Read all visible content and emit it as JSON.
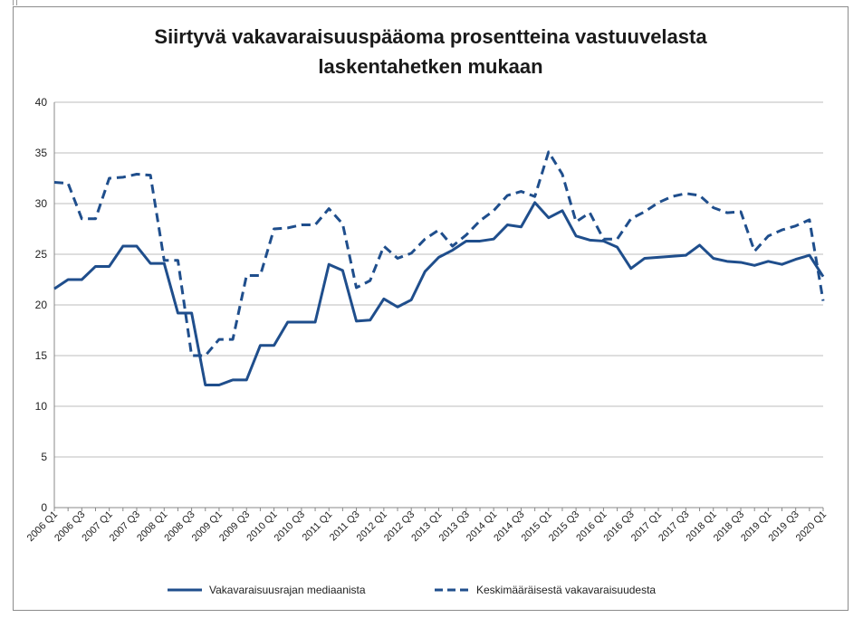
{
  "chart_data": {
    "type": "line",
    "title_lines": [
      "Siirtyvä vakavaraisuuspääoma prosentteina vastuuvelasta",
      "laskentahetken mukaan"
    ],
    "xlabel": "",
    "ylabel": "",
    "ylim": [
      0,
      40
    ],
    "yticks": [
      "0",
      "5",
      "10",
      "15",
      "20",
      "25",
      "30",
      "35",
      "40"
    ],
    "grid": true,
    "legend_position": "bottom",
    "x_labels": [
      "2006 Q1",
      "2006 Q3",
      "2007 Q1",
      "2007 Q3",
      "2008 Q1",
      "2008 Q3",
      "2009 Q1",
      "2009 Q3",
      "2010 Q1",
      "2010 Q3",
      "2011 Q1",
      "2011 Q3",
      "2012 Q1",
      "2012 Q3",
      "2013 Q1",
      "2013 Q3",
      "2014 Q1",
      "2014 Q3",
      "2015 Q1",
      "2015 Q3",
      "2016 Q1",
      "2016 Q3",
      "2017 Q1",
      "2017 Q3",
      "2018 Q1",
      "2018 Q3",
      "2019 Q1",
      "2019 Q3",
      "2020 Q1"
    ],
    "x_quarters": [
      "2006 Q1",
      "2006 Q2",
      "2006 Q3",
      "2006 Q4",
      "2007 Q1",
      "2007 Q2",
      "2007 Q3",
      "2007 Q4",
      "2008 Q1",
      "2008 Q2",
      "2008 Q3",
      "2008 Q4",
      "2009 Q1",
      "2009 Q2",
      "2009 Q3",
      "2009 Q4",
      "2010 Q1",
      "2010 Q2",
      "2010 Q3",
      "2010 Q4",
      "2011 Q1",
      "2011 Q2",
      "2011 Q3",
      "2011 Q4",
      "2012 Q1",
      "2012 Q2",
      "2012 Q3",
      "2012 Q4",
      "2013 Q1",
      "2013 Q2",
      "2013 Q3",
      "2013 Q4",
      "2014 Q1",
      "2014 Q2",
      "2014 Q3",
      "2014 Q4",
      "2015 Q1",
      "2015 Q2",
      "2015 Q3",
      "2015 Q4",
      "2016 Q1",
      "2016 Q2",
      "2016 Q3",
      "2016 Q4",
      "2017 Q1",
      "2017 Q2",
      "2017 Q3",
      "2017 Q4",
      "2018 Q1",
      "2018 Q2",
      "2018 Q3",
      "2018 Q4",
      "2019 Q1",
      "2019 Q2",
      "2019 Q3",
      "2019 Q4",
      "2020 Q1"
    ],
    "series": [
      {
        "name": "Vakavaraisuusrajan mediaanista",
        "style": "solid",
        "color": "#1f4e8c",
        "values": [
          21.6,
          22.5,
          22.5,
          23.8,
          23.8,
          25.8,
          25.8,
          24.1,
          24.1,
          19.2,
          19.2,
          12.1,
          12.1,
          12.6,
          12.6,
          16.0,
          16.0,
          18.3,
          18.3,
          18.3,
          24.0,
          23.4,
          18.4,
          18.5,
          20.6,
          19.8,
          20.5,
          23.3,
          24.7,
          25.4,
          26.3,
          26.3,
          26.5,
          27.9,
          27.7,
          30.1,
          28.6,
          29.3,
          26.8,
          26.4,
          26.3,
          25.7,
          23.6,
          24.6,
          24.7,
          24.8,
          24.9,
          25.9,
          24.6,
          24.3,
          24.2,
          23.9,
          24.3,
          24.0,
          24.5,
          24.9,
          22.8
        ]
      },
      {
        "name": "Keskimääräisestä vakavaraisuudesta",
        "style": "dashed",
        "color": "#1f4e8c",
        "values": [
          32.1,
          32.0,
          28.5,
          28.5,
          32.5,
          32.6,
          32.9,
          32.8,
          24.4,
          24.4,
          15.0,
          15.0,
          16.6,
          16.6,
          22.9,
          22.9,
          27.5,
          27.6,
          27.9,
          27.9,
          29.5,
          28.0,
          21.7,
          22.4,
          25.8,
          24.6,
          25.1,
          26.5,
          27.4,
          25.8,
          26.9,
          28.3,
          29.3,
          30.8,
          31.2,
          30.7,
          35.1,
          32.9,
          28.2,
          29.1,
          26.5,
          26.5,
          28.5,
          29.2,
          30.1,
          30.7,
          31.0,
          30.8,
          29.6,
          29.1,
          29.2,
          25.3,
          26.8,
          27.4,
          27.8,
          28.4,
          20.4
        ]
      }
    ]
  }
}
